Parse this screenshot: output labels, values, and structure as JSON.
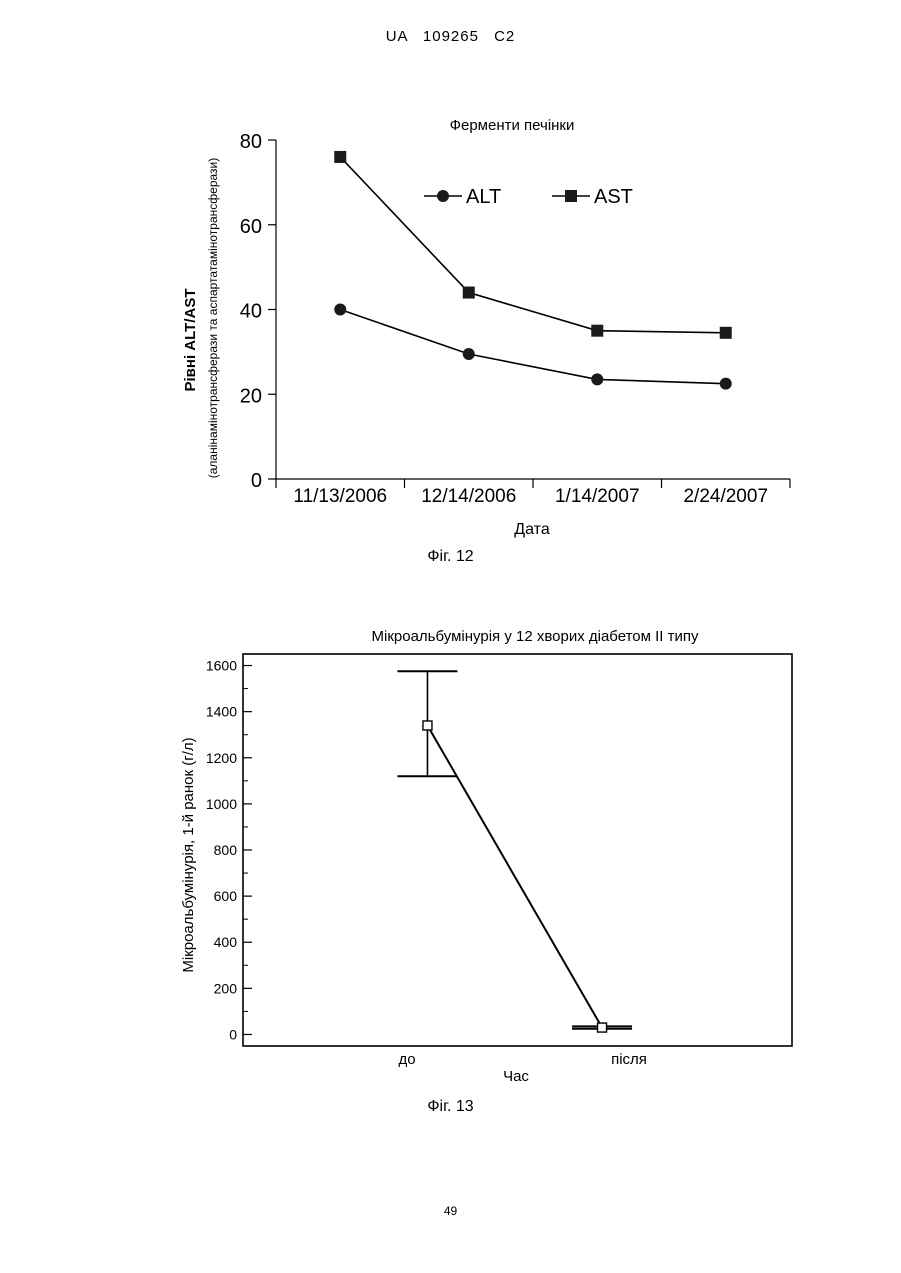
{
  "header": {
    "text": "UA   109265   C2"
  },
  "page_number": "49",
  "chart_data": [
    {
      "type": "line",
      "title": "Ферменти печінки",
      "caption": "Фіг. 12",
      "xlabel": "Дата",
      "ylabel_main": "Рівні    ALT/AST",
      "ylabel_sub": "(аланінамінотрансферази та аспартатамінотрансферази)",
      "categories": [
        "11/13/2006",
        "12/14/2006",
        "1/14/2007",
        "2/24/2007"
      ],
      "ylim": [
        0,
        80
      ],
      "yticks": [
        0,
        20,
        40,
        60,
        80
      ],
      "legend_position": "top-center",
      "grid": false,
      "series": [
        {
          "name": "ALT",
          "marker": "circle",
          "values": [
            40,
            29.5,
            23.5,
            22.5
          ]
        },
        {
          "name": "AST",
          "marker": "square",
          "values": [
            76,
            44,
            35,
            34.5
          ]
        }
      ]
    },
    {
      "type": "line",
      "title": "Мікроальбумінурія у 12 хворих діабетом II типу",
      "caption": "Фіг. 13",
      "xlabel": "Час",
      "ylabel": "Мікроальбумінурія, 1-й ранок (г/л)",
      "categories": [
        "до",
        "після"
      ],
      "ylim": [
        -50,
        1650
      ],
      "yticks": [
        0,
        200,
        400,
        600,
        800,
        1000,
        1200,
        1400,
        1600
      ],
      "grid": false,
      "series": [
        {
          "marker": "open-square",
          "values": [
            1340,
            30
          ],
          "error_low": [
            1120,
            25
          ],
          "error_high": [
            1575,
            35
          ]
        }
      ]
    }
  ]
}
